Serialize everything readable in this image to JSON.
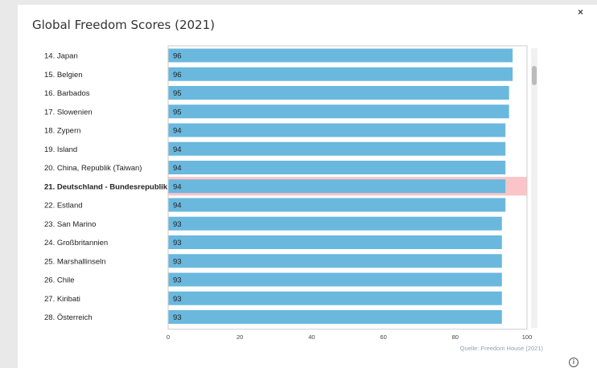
{
  "window": {
    "close_label": "×",
    "info_label": "i"
  },
  "chart_data": {
    "type": "bar",
    "orientation": "horizontal",
    "title": "Global Freedom Scores (2021)",
    "categories": [
      "14. Japan",
      "15. Belgien",
      "16. Barbados",
      "17. Slowenien",
      "18. Zypern",
      "19. Island",
      "20. China, Republik (Taiwan)",
      "21. Deutschland - Bundesrepublik",
      "22. Estland",
      "23. San Marino",
      "24. Großbritannien",
      "25. Marshallinseln",
      "26. Chile",
      "27. Kiribati",
      "28. Österreich"
    ],
    "values": [
      96,
      96,
      95,
      95,
      94,
      94,
      94,
      94,
      94,
      93,
      93,
      93,
      93,
      93,
      93
    ],
    "highlighted_category": "21. Deutschland - Bundesrepublik",
    "xlim": [
      0,
      100
    ],
    "xticks": [
      0,
      20,
      40,
      60,
      80,
      100
    ],
    "data_labels": true,
    "grid": false,
    "colors": {
      "bar": "#6ab8de",
      "highlight_row": "#f9c5c9",
      "axis": "#cccccc"
    },
    "source": "Quelle: Freedom House (2021)"
  }
}
